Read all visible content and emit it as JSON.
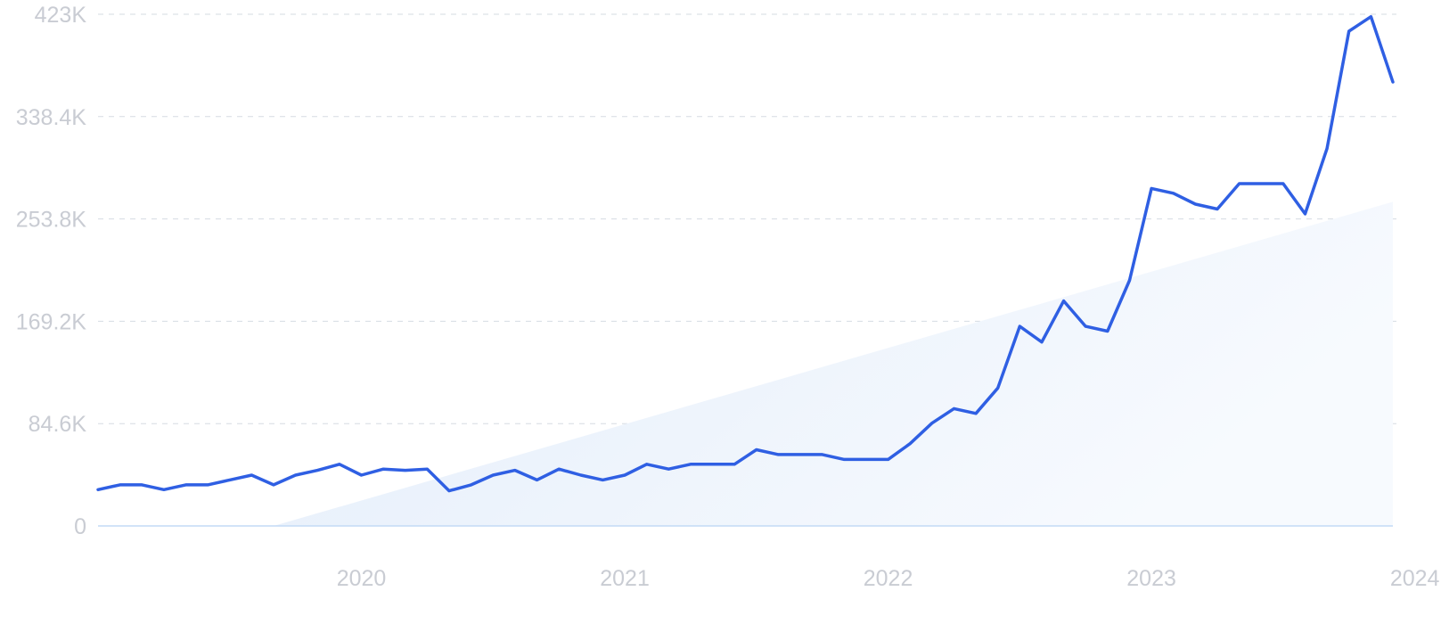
{
  "chart_data": {
    "type": "line",
    "title": "",
    "xlabel": "",
    "ylabel": "",
    "x_tick_labels": [
      "2020",
      "2021",
      "2022",
      "2023",
      "2024"
    ],
    "y_tick_labels": [
      "0",
      "84.6K",
      "169.2K",
      "253.8K",
      "338.4K",
      "423K"
    ],
    "ylim": [
      0,
      423000
    ],
    "xlim": [
      "2019-07",
      "2024-06"
    ],
    "grid": "horizontal dashed",
    "legend": "none",
    "series": [
      {
        "x": [
          "2019-07",
          "2019-08",
          "2019-09",
          "2019-10",
          "2019-11",
          "2019-12",
          "2020-01",
          "2020-02",
          "2020-03",
          "2020-04",
          "2020-05",
          "2020-06",
          "2020-07",
          "2020-08",
          "2020-09",
          "2020-10",
          "2020-11",
          "2020-12",
          "2021-01",
          "2021-02",
          "2021-03",
          "2021-04",
          "2021-05",
          "2021-06",
          "2021-07",
          "2021-08",
          "2021-09",
          "2021-10",
          "2021-11",
          "2021-12",
          "2022-01",
          "2022-02",
          "2022-03",
          "2022-04",
          "2022-05",
          "2022-06",
          "2022-07",
          "2022-08",
          "2022-09",
          "2022-10",
          "2022-11",
          "2022-12",
          "2023-01",
          "2023-02",
          "2023-03",
          "2023-04",
          "2023-05",
          "2023-06",
          "2023-07",
          "2023-08",
          "2023-09",
          "2023-10",
          "2023-11",
          "2023-12",
          "2024-01",
          "2024-02",
          "2024-03",
          "2024-04",
          "2024-05",
          "2024-06"
        ],
        "values": [
          30000,
          34000,
          34000,
          30000,
          34000,
          34000,
          38000,
          42000,
          34000,
          42000,
          46000,
          51000,
          42000,
          47000,
          46000,
          47000,
          29000,
          34000,
          42000,
          46000,
          38000,
          47000,
          42000,
          38000,
          42000,
          51000,
          47000,
          51000,
          51000,
          51000,
          63000,
          59000,
          59000,
          59000,
          55000,
          55000,
          55000,
          68000,
          85000,
          97000,
          93000,
          114000,
          165000,
          152000,
          186000,
          165000,
          161000,
          203000,
          279000,
          275000,
          266000,
          262000,
          283000,
          283000,
          283000,
          258000,
          312000,
          409000,
          421000,
          367000
        ]
      }
    ],
    "trend": {
      "type": "area",
      "x": [
        "2020-03",
        "2024-06"
      ],
      "values": [
        0,
        268000
      ]
    },
    "colors": {
      "line": "#2f5fe3",
      "trend_fill": "#e8f0fb",
      "grid": "#d5dbe2",
      "baseline": "#c3daf5",
      "tick_text": "#c9ccd3"
    }
  }
}
